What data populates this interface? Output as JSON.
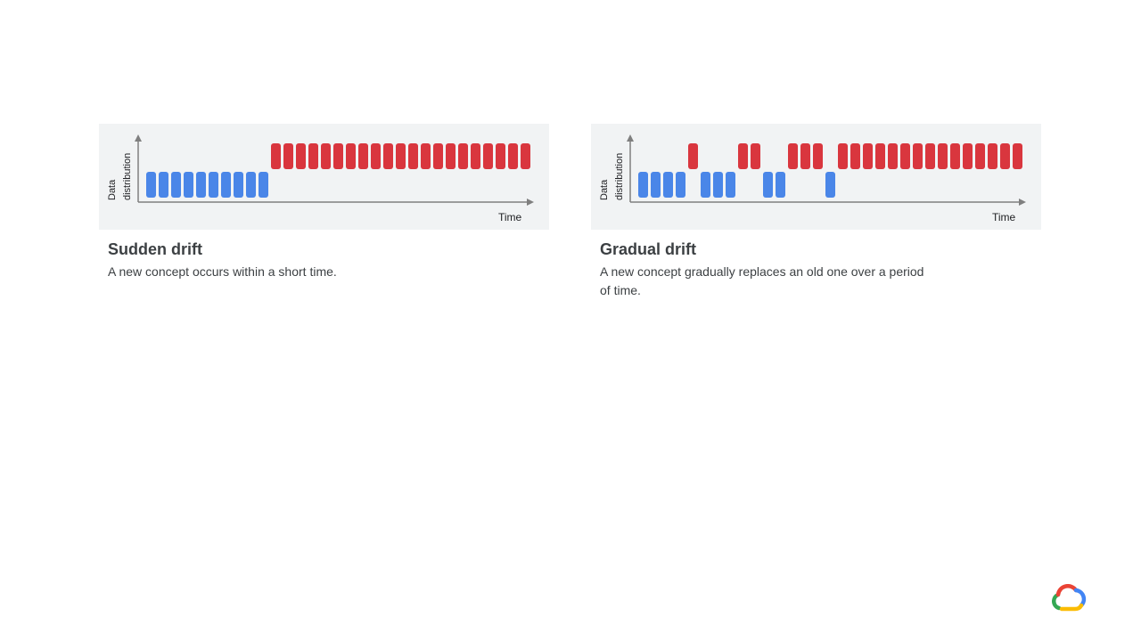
{
  "diagrams": [
    {
      "id": "sudden",
      "title": "Sudden drift",
      "description": "A new concept occurs within a short time.",
      "y_axis_label_line1": "Data",
      "y_axis_label_line2": "distribution",
      "x_axis_label": "Time",
      "sequence": "BBBBBBBBBBRRRRRRRRRRRRRRRRRRRRR"
    },
    {
      "id": "gradual",
      "title": "Gradual drift",
      "description": "A new concept gradually replaces an old one over a period of time.",
      "y_axis_label_line1": "Data",
      "y_axis_label_line2": "distribution",
      "x_axis_label": "Time",
      "sequence": "BBBBRBBBRRBBRRRBRRRRRRRRRRRRRRR"
    }
  ],
  "colors": {
    "old_concept": "#4a86e8",
    "new_concept": "#d9363e",
    "axis": "#7f7f7f",
    "panel_bg": "#f1f3f4",
    "text": "#3c4043"
  },
  "logo": {
    "icon": "google-cloud-logo-icon"
  }
}
